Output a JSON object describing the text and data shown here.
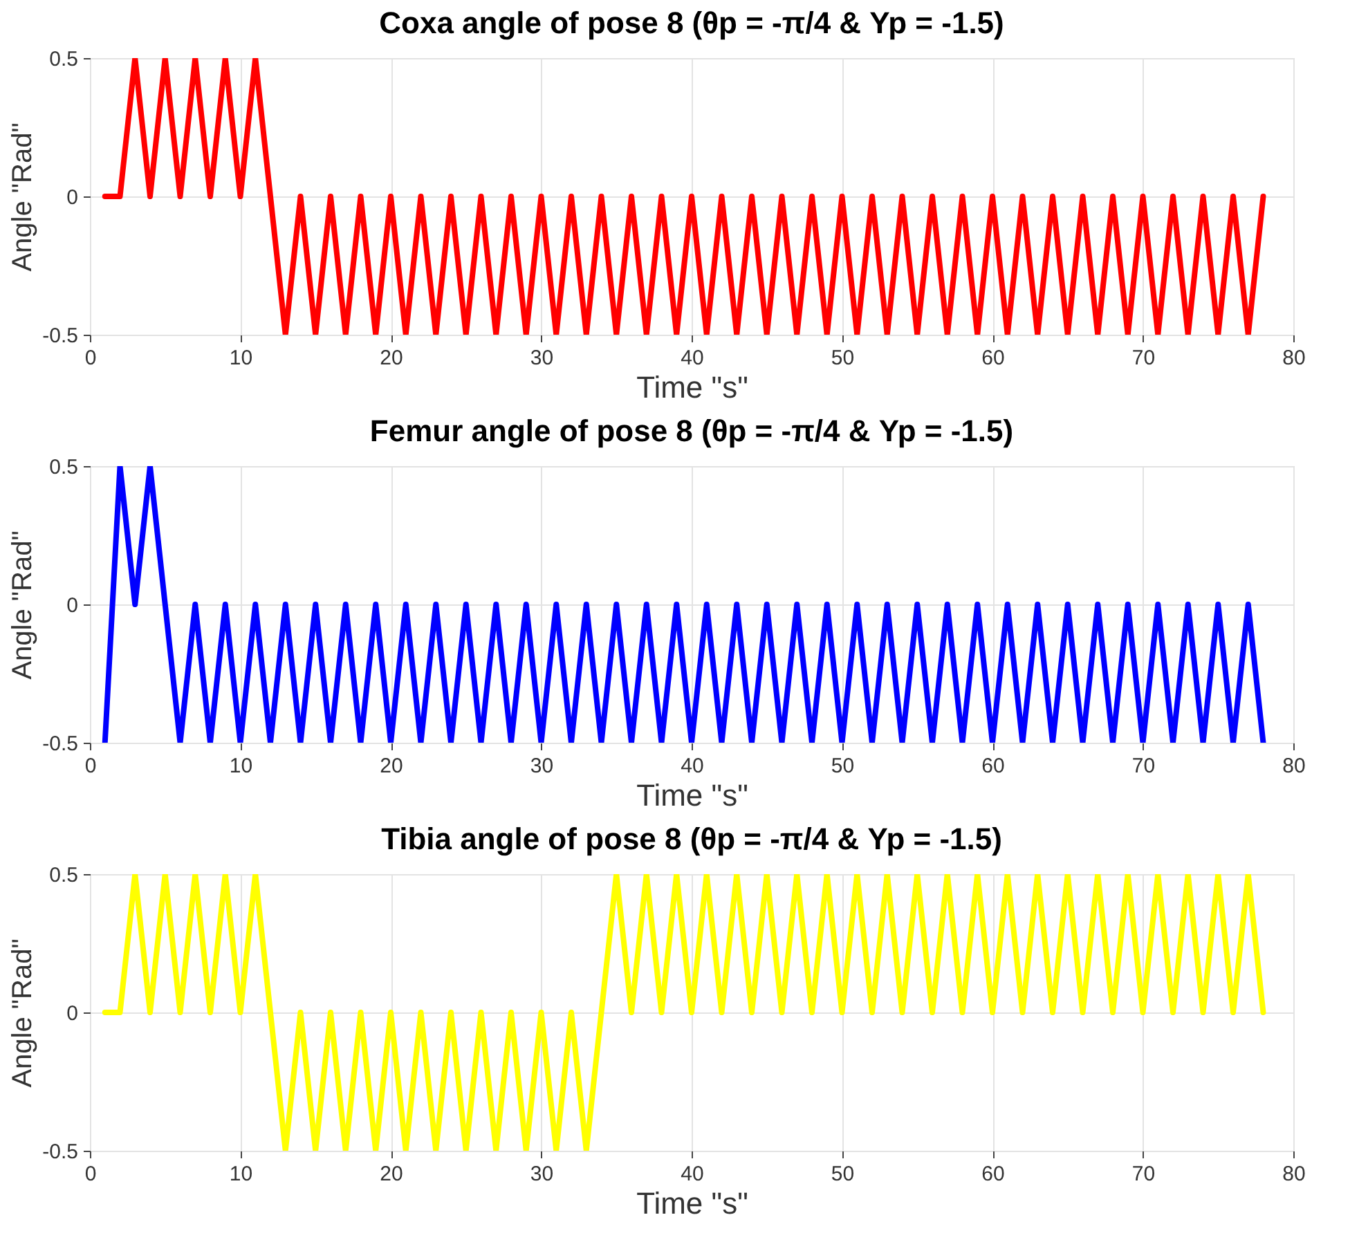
{
  "chart_data": [
    {
      "type": "line",
      "title": "Coxa angle of pose 8 (θp = -π/4 & Yp = -1.5)",
      "xlabel": "Time \"s\"",
      "ylabel": "Angle \"Rad\"",
      "x": [
        1,
        2,
        3,
        4,
        5,
        6,
        7,
        8,
        9,
        10,
        11,
        12,
        13,
        14,
        15,
        16,
        17,
        18,
        19,
        20,
        21,
        22,
        23,
        24,
        25,
        26,
        27,
        28,
        29,
        30,
        31,
        32,
        33,
        34,
        35,
        36,
        37,
        38,
        39,
        40,
        41,
        42,
        43,
        44,
        45,
        46,
        47,
        48,
        49,
        50,
        51,
        52,
        53,
        54,
        55,
        56,
        57,
        58,
        59,
        60,
        61,
        62,
        63,
        64,
        65,
        66,
        67,
        68,
        69,
        70,
        71,
        72,
        73,
        74,
        75,
        76,
        77,
        78
      ],
      "series": [
        {
          "color": "#ff0000",
          "values": [
            0,
            0,
            0.5,
            0,
            0.5,
            0,
            0.5,
            0,
            0.5,
            0,
            0.5,
            0,
            -0.5,
            0,
            -0.5,
            0,
            -0.5,
            0,
            -0.5,
            0,
            -0.5,
            0,
            -0.5,
            0,
            -0.5,
            0,
            -0.5,
            0,
            -0.5,
            0,
            -0.5,
            0,
            -0.5,
            0,
            -0.5,
            0,
            -0.5,
            0,
            -0.5,
            0,
            -0.5,
            0,
            -0.5,
            0,
            -0.5,
            0,
            -0.5,
            0,
            -0.5,
            0,
            -0.5,
            0,
            -0.5,
            0,
            -0.5,
            0,
            -0.5,
            0,
            -0.5,
            0,
            -0.5,
            0,
            -0.5,
            0,
            -0.5,
            0,
            -0.5,
            0,
            -0.5,
            0,
            -0.5,
            0,
            -0.5,
            0,
            -0.5,
            0,
            -0.5,
            0
          ]
        }
      ],
      "xlim": [
        0,
        80
      ],
      "xticks": [
        0,
        10,
        20,
        30,
        40,
        50,
        60,
        70,
        80
      ],
      "ylim": [
        -0.5,
        0.5
      ],
      "yticks": [
        -0.5,
        0,
        0.5
      ],
      "grid": true,
      "marker": "none",
      "line_style": "solid"
    },
    {
      "type": "line",
      "title": "Femur angle of pose 8 (θp = -π/4 & Yp = -1.5)",
      "xlabel": "Time \"s\"",
      "ylabel": "Angle \"Rad\"",
      "x": [
        1,
        2,
        3,
        4,
        5,
        6,
        7,
        8,
        9,
        10,
        11,
        12,
        13,
        14,
        15,
        16,
        17,
        18,
        19,
        20,
        21,
        22,
        23,
        24,
        25,
        26,
        27,
        28,
        29,
        30,
        31,
        32,
        33,
        34,
        35,
        36,
        37,
        38,
        39,
        40,
        41,
        42,
        43,
        44,
        45,
        46,
        47,
        48,
        49,
        50,
        51,
        52,
        53,
        54,
        55,
        56,
        57,
        58,
        59,
        60,
        61,
        62,
        63,
        64,
        65,
        66,
        67,
        68,
        69,
        70,
        71,
        72,
        73,
        74,
        75,
        76,
        77,
        78
      ],
      "series": [
        {
          "color": "#0000ff",
          "values": [
            -0.5,
            0.5,
            0,
            0.5,
            0,
            -0.5,
            0,
            -0.5,
            0,
            -0.5,
            0,
            -0.5,
            0,
            -0.5,
            0,
            -0.5,
            0,
            -0.5,
            0,
            -0.5,
            0,
            -0.5,
            0,
            -0.5,
            0,
            -0.5,
            0,
            -0.5,
            0,
            -0.5,
            0,
            -0.5,
            0,
            -0.5,
            0,
            -0.5,
            0,
            -0.5,
            0,
            -0.5,
            0,
            -0.5,
            0,
            -0.5,
            0,
            -0.5,
            0,
            -0.5,
            0,
            -0.5,
            0,
            -0.5,
            0,
            -0.5,
            0,
            -0.5,
            0,
            -0.5,
            0,
            -0.5,
            0,
            -0.5,
            0,
            -0.5,
            0,
            -0.5,
            0,
            -0.5,
            0,
            -0.5,
            0,
            -0.5,
            0,
            -0.5,
            0,
            -0.5,
            0,
            -0.5
          ]
        }
      ],
      "xlim": [
        0,
        80
      ],
      "xticks": [
        0,
        10,
        20,
        30,
        40,
        50,
        60,
        70,
        80
      ],
      "ylim": [
        -0.5,
        0.5
      ],
      "yticks": [
        -0.5,
        0,
        0.5
      ],
      "grid": true,
      "marker": "none",
      "line_style": "solid"
    },
    {
      "type": "line",
      "title": "Tibia angle of pose 8 (θp = -π/4 & Yp = -1.5)",
      "xlabel": "Time \"s\"",
      "ylabel": "Angle \"Rad\"",
      "x": [
        1,
        2,
        3,
        4,
        5,
        6,
        7,
        8,
        9,
        10,
        11,
        12,
        13,
        14,
        15,
        16,
        17,
        18,
        19,
        20,
        21,
        22,
        23,
        24,
        25,
        26,
        27,
        28,
        29,
        30,
        31,
        32,
        33,
        34,
        35,
        36,
        37,
        38,
        39,
        40,
        41,
        42,
        43,
        44,
        45,
        46,
        47,
        48,
        49,
        50,
        51,
        52,
        53,
        54,
        55,
        56,
        57,
        58,
        59,
        60,
        61,
        62,
        63,
        64,
        65,
        66,
        67,
        68,
        69,
        70,
        71,
        72,
        73,
        74,
        75,
        76,
        77,
        78
      ],
      "series": [
        {
          "color": "#ffff00",
          "values": [
            0,
            0,
            0.5,
            0,
            0.5,
            0,
            0.5,
            0,
            0.5,
            0,
            0.5,
            0,
            -0.5,
            0,
            -0.5,
            0,
            -0.5,
            0,
            -0.5,
            0,
            -0.5,
            0,
            -0.5,
            0,
            -0.5,
            0,
            -0.5,
            0,
            -0.5,
            0,
            -0.5,
            0,
            -0.5,
            0,
            0.5,
            0,
            0.5,
            0,
            0.5,
            0,
            0.5,
            0,
            0.5,
            0,
            0.5,
            0,
            0.5,
            0,
            0.5,
            0,
            0.5,
            0,
            0.5,
            0,
            0.5,
            0,
            0.5,
            0,
            0.5,
            0,
            0.5,
            0,
            0.5,
            0,
            0.5,
            0,
            0.5,
            0,
            0.5,
            0,
            0.5,
            0,
            0.5,
            0,
            0.5,
            0,
            0.5,
            0
          ]
        }
      ],
      "xlim": [
        0,
        80
      ],
      "xticks": [
        0,
        10,
        20,
        30,
        40,
        50,
        60,
        70,
        80
      ],
      "ylim": [
        -0.5,
        0.5
      ],
      "yticks": [
        -0.5,
        0,
        0.5
      ],
      "grid": true,
      "marker": "none",
      "line_style": "solid"
    }
  ]
}
